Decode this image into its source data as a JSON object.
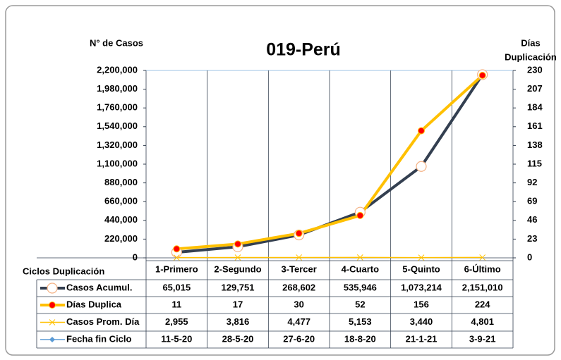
{
  "chart_data": {
    "type": "line",
    "title": "019-Perú",
    "ylabel": "N° de Casos",
    "y2label": [
      "Días",
      "Duplicación"
    ],
    "table_label": "Ciclos Duplicación",
    "categories": [
      "1-Primero",
      "2-Segundo",
      "3-Tercer",
      "4-Cuarto",
      "5-Quinto",
      "6-Último"
    ],
    "ylim": [
      0,
      2200000
    ],
    "yticks": [
      0,
      {
        "value": 220000,
        "label": "220,000"
      },
      {
        "value": 440000,
        "label": "440,000"
      },
      {
        "value": 660000,
        "label": "660,000"
      },
      {
        "value": 880000,
        "label": "880,000"
      },
      {
        "value": 1100000,
        "label": "1,100,000"
      },
      {
        "value": 1320000,
        "label": "1,320,000"
      },
      {
        "value": 1540000,
        "label": "1,540,000"
      },
      {
        "value": 1760000,
        "label": "1,760,000"
      },
      {
        "value": 1980000,
        "label": "1,980,000"
      },
      {
        "value": 2200000,
        "label": "2,200,000"
      }
    ],
    "y2lim": [
      0,
      230
    ],
    "y2ticks": [
      0,
      23,
      46,
      69,
      92,
      115,
      138,
      161,
      184,
      207,
      230
    ],
    "series": [
      {
        "name": "Casos Acumul.",
        "color": "#333f50",
        "marker": "open-circle",
        "values": [
          65015,
          129751,
          268602,
          535946,
          1073214,
          2151010
        ],
        "value_labels": [
          "65,015",
          "129,751",
          "268,602",
          "535,946",
          "1,073,214",
          "2,151,010"
        ]
      },
      {
        "name": "Días Duplica",
        "color": "#ffc000",
        "marker": "red-dot",
        "axis": "y2",
        "values": [
          11,
          17,
          30,
          52,
          156,
          224
        ]
      },
      {
        "name": "Casos Prom. Día",
        "color": "#ffc000",
        "marker": "x",
        "values": [
          2955,
          3816,
          4477,
          5153,
          3440,
          4801
        ],
        "value_labels": [
          "2,955",
          "3,816",
          "4,477",
          "5,153",
          "3,440",
          "4,801"
        ]
      },
      {
        "name": "Fecha fin Ciclo",
        "color": "#5b9bd5",
        "marker": "diamond",
        "text_values": [
          "11-5-20",
          "28-5-20",
          "27-6-20",
          "18-8-20",
          "21-1-21",
          "3-9-21"
        ]
      }
    ]
  }
}
